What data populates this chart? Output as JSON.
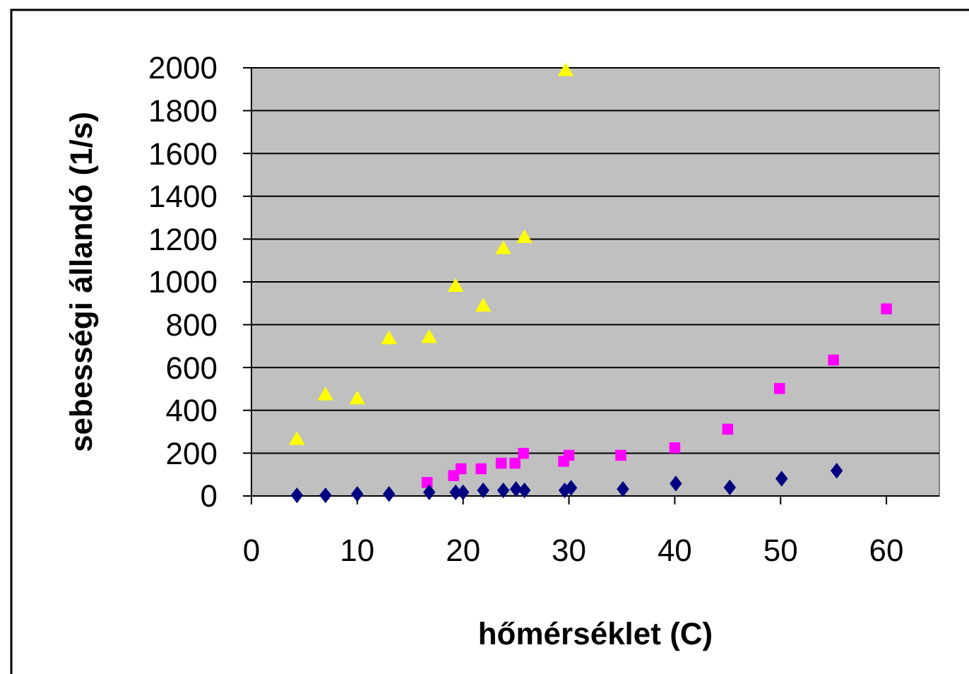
{
  "chart_data": {
    "type": "scatter",
    "xlabel": "hőmérséklet (C)",
    "ylabel": "sebességi állandó (1/s)",
    "xlim": [
      0,
      65
    ],
    "xticks": [
      0,
      10,
      20,
      30,
      40,
      50,
      60
    ],
    "ylim": [
      0,
      2000
    ],
    "yticks": [
      0,
      200,
      400,
      600,
      800,
      1000,
      1200,
      1400,
      1600,
      1800,
      2000
    ],
    "grid": "y",
    "series": [
      {
        "color": "#ffff00",
        "marker": "triangle",
        "x": [
          4.3,
          7.0,
          10.0,
          13.0,
          16.8,
          19.3,
          21.9,
          23.8,
          25.8,
          29.7
        ],
        "values": [
          260,
          468,
          450,
          730,
          736,
          975,
          883,
          1151,
          1203,
          1983
        ]
      },
      {
        "color": "#ff00ff",
        "marker": "square",
        "x": [
          16.6,
          19.1,
          19.8,
          21.7,
          23.6,
          24.9,
          25.7,
          29.5,
          30.0,
          34.9,
          40.0,
          45.0,
          49.9,
          55.0,
          60.0
        ],
        "values": [
          63,
          95,
          127,
          127,
          153,
          153,
          199,
          162,
          190,
          190,
          225,
          312,
          502,
          635,
          874
        ]
      },
      {
        "color": "#000080",
        "marker": "diamond",
        "x": [
          4.3,
          7.0,
          10.0,
          13.0,
          16.8,
          19.3,
          20.0,
          21.9,
          23.8,
          25.0,
          25.8,
          29.6,
          30.2,
          35.1,
          40.1,
          45.2,
          50.1,
          55.3
        ],
        "values": [
          3,
          3,
          9,
          9,
          17,
          17,
          17,
          26,
          26,
          32,
          26,
          26,
          38,
          32,
          58,
          40,
          81,
          118
        ]
      }
    ]
  }
}
